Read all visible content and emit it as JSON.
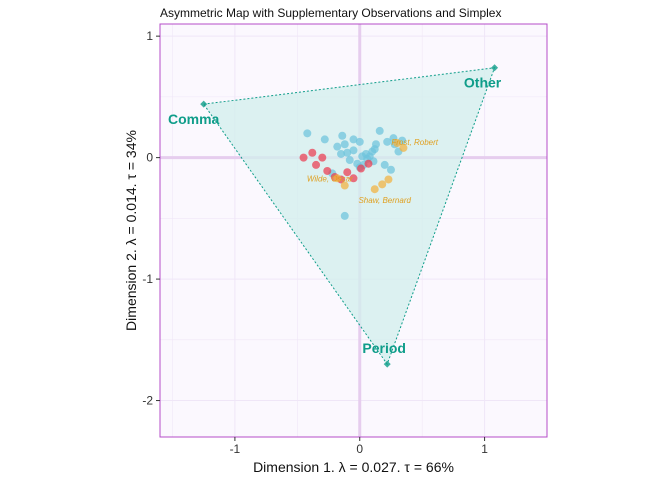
{
  "chart_data": {
    "type": "scatter",
    "title": "Asymmetric Map with Supplementary Observations and Simplex",
    "xlabel": "Dimension 1.   λ = 0.027.  τ = 66%",
    "ylabel": "Dimension 2.   λ = 0.014.  τ = 34%",
    "xlim": [
      -1.6,
      1.5
    ],
    "ylim": [
      -2.3,
      1.1
    ],
    "x_ticks": [
      -1,
      0,
      1
    ],
    "y_ticks": [
      -2,
      -1,
      0,
      1
    ],
    "grid": true,
    "colors": {
      "panel_border": "#b44cc8",
      "panel_bg": "#fbf8fe",
      "grid": "#efe6f7",
      "zero_line": "#e6cdee",
      "simplex_fill": "#d2efec",
      "simplex_line": "#0f9d8a",
      "vertex_text": "#0f9d8a",
      "blue_points": "#6ec3dc",
      "red_points": "#ec3b50",
      "orange_points": "#f2b23e",
      "orange_text": "#e0a020"
    },
    "simplex": [
      {
        "label": "Comma",
        "x": -1.25,
        "y": 0.44
      },
      {
        "label": "Other",
        "x": 1.08,
        "y": 0.74
      },
      {
        "label": "Period",
        "x": 0.22,
        "y": -1.7
      }
    ],
    "series": [
      {
        "color_key": "blue_points",
        "points": [
          [
            -0.42,
            0.2
          ],
          [
            -0.28,
            0.15
          ],
          [
            -0.18,
            0.09
          ],
          [
            -0.14,
            0.18
          ],
          [
            -0.12,
            0.11
          ],
          [
            -0.1,
            0.04
          ],
          [
            -0.15,
            0.03
          ],
          [
            -0.05,
            0.06
          ],
          [
            0.0,
            0.13
          ],
          [
            0.02,
            0.01
          ],
          [
            0.05,
            0.03
          ],
          [
            0.08,
            0.01
          ],
          [
            0.1,
            0.05
          ],
          [
            0.12,
            0.07
          ],
          [
            0.16,
            0.22
          ],
          [
            0.22,
            0.13
          ],
          [
            0.27,
            0.16
          ],
          [
            0.31,
            0.05
          ],
          [
            0.28,
            0.11
          ],
          [
            0.34,
            0.14
          ],
          [
            0.2,
            -0.06
          ],
          [
            0.25,
            -0.1
          ],
          [
            -0.08,
            -0.02
          ],
          [
            0.03,
            -0.06
          ],
          [
            0.06,
            -0.01
          ],
          [
            0.11,
            -0.03
          ],
          [
            -0.05,
            0.15
          ],
          [
            0.0,
            -0.08
          ],
          [
            -0.22,
            -0.13
          ],
          [
            -0.12,
            -0.48
          ],
          [
            -0.02,
            -0.05
          ],
          [
            0.13,
            0.11
          ]
        ]
      },
      {
        "color_key": "red_points",
        "points": [
          [
            -0.45,
            0.0
          ],
          [
            -0.38,
            0.04
          ],
          [
            -0.3,
            0.0
          ],
          [
            -0.35,
            -0.06
          ],
          [
            -0.26,
            -0.11
          ],
          [
            -0.2,
            -0.16
          ],
          [
            -0.15,
            -0.18
          ],
          [
            -0.1,
            -0.12
          ],
          [
            -0.05,
            -0.17
          ],
          [
            0.01,
            -0.09
          ],
          [
            0.07,
            -0.05
          ]
        ]
      },
      {
        "color_key": "orange_points",
        "points": [
          [
            0.35,
            0.08
          ],
          [
            0.23,
            -0.18
          ],
          [
            -0.12,
            -0.23
          ],
          [
            0.12,
            -0.26
          ],
          [
            0.3,
            0.12
          ],
          [
            -0.18,
            -0.17
          ],
          [
            0.18,
            -0.22
          ]
        ]
      }
    ],
    "annotations": [
      {
        "text": "Frost, Robert",
        "x": 0.44,
        "y": 0.13
      },
      {
        "text": "Wilde, Oscar",
        "x": -0.24,
        "y": -0.17
      },
      {
        "text": "Shaw, Bernard",
        "x": 0.2,
        "y": -0.35
      }
    ]
  }
}
